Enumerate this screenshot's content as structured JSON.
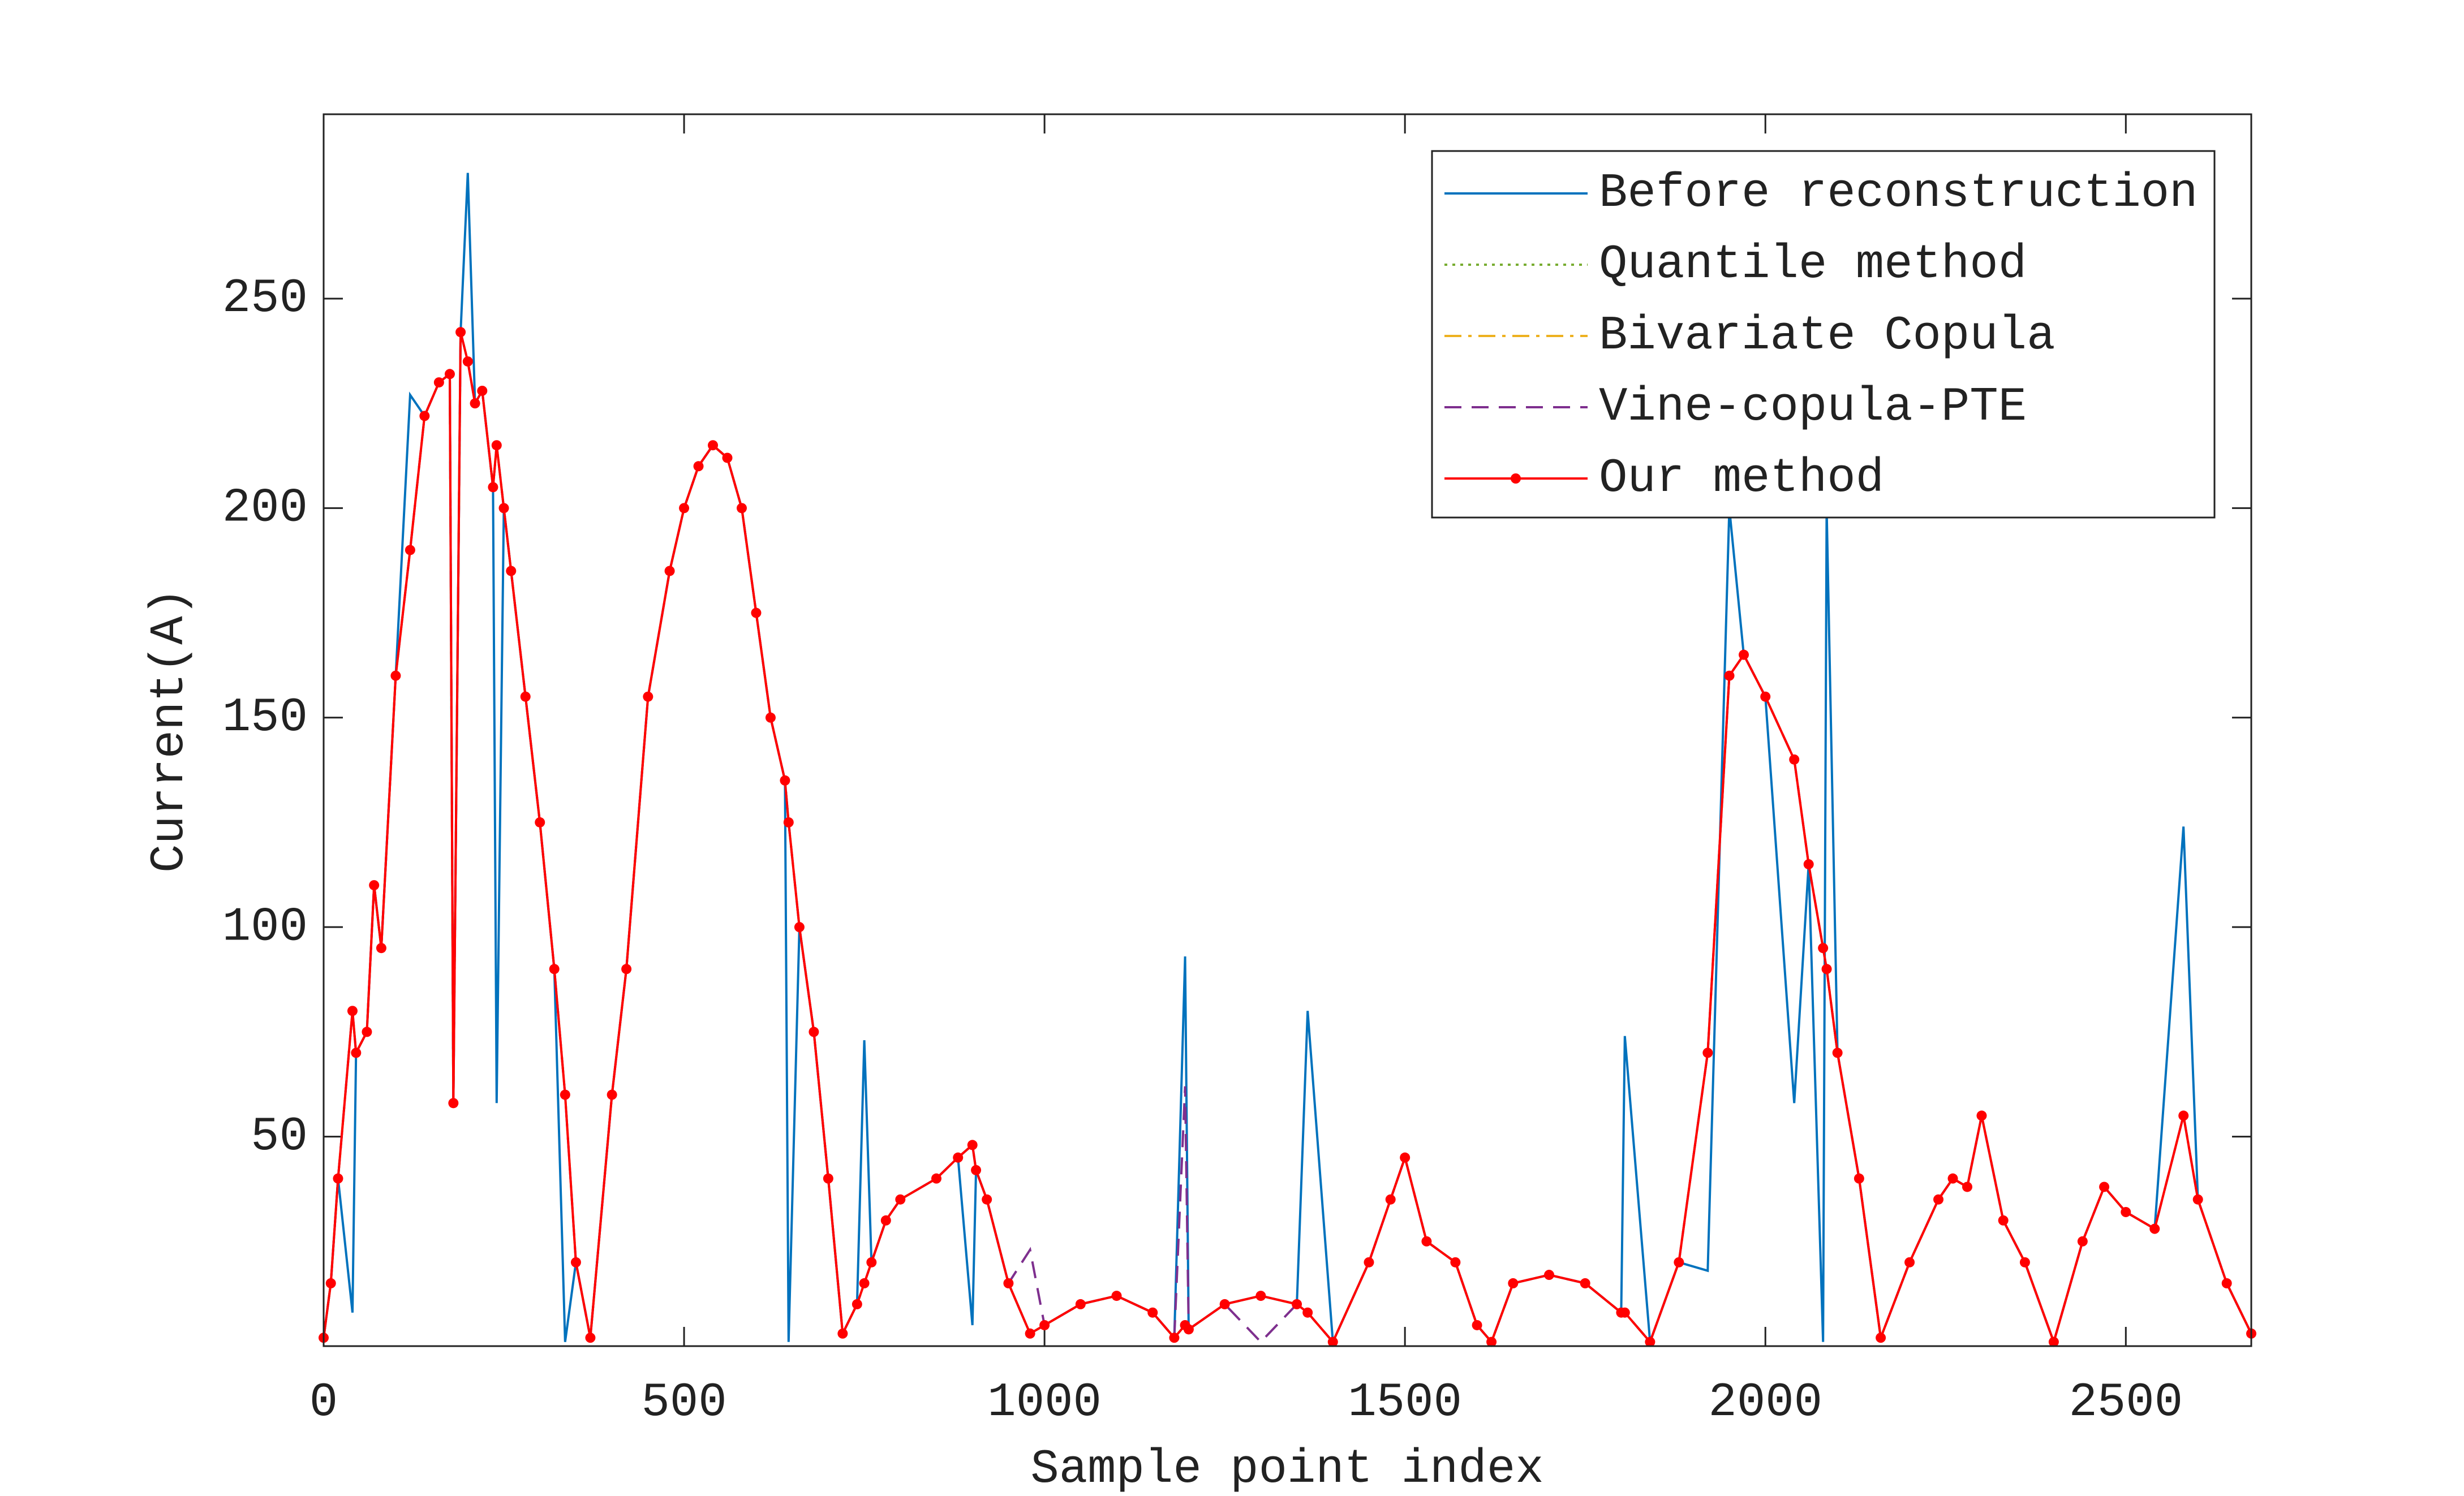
{
  "chart_data": {
    "type": "line",
    "xlabel": "Sample point index",
    "ylabel": "Current(A)",
    "x": [
      0,
      10,
      20,
      40,
      45,
      60,
      70,
      80,
      100,
      120,
      140,
      160,
      175,
      180,
      190,
      200,
      210,
      220,
      235,
      240,
      250,
      260,
      280,
      300,
      320,
      335,
      350,
      370,
      400,
      420,
      450,
      480,
      500,
      520,
      540,
      560,
      580,
      600,
      620,
      640,
      645,
      660,
      680,
      700,
      720,
      740,
      750,
      760,
      780,
      800,
      850,
      880,
      900,
      905,
      920,
      950,
      980,
      1000,
      1050,
      1100,
      1150,
      1180,
      1195,
      1200,
      1250,
      1300,
      1350,
      1365,
      1400,
      1450,
      1480,
      1500,
      1530,
      1570,
      1600,
      1620,
      1650,
      1700,
      1750,
      1800,
      1805,
      1840,
      1880,
      1920,
      1950,
      1970,
      2000,
      2040,
      2060,
      2080,
      2085,
      2100,
      2130,
      2160,
      2200,
      2240,
      2260,
      2280,
      2300,
      2330,
      2360,
      2400,
      2440,
      2470,
      2500,
      2540,
      2580,
      2600,
      2640,
      2674
    ],
    "series": [
      {
        "name": "Before reconstruction",
        "color": "#0072BD",
        "linestyle": "solid",
        "values": [
          2,
          15,
          40,
          8,
          70,
          75,
          110,
          95,
          160,
          227,
          222,
          230,
          232,
          58,
          242,
          280,
          225,
          228,
          205,
          58,
          200,
          185,
          155,
          125,
          90,
          1,
          20,
          2,
          60,
          90,
          155,
          185,
          200,
          210,
          215,
          212,
          200,
          175,
          150,
          135,
          1,
          100,
          75,
          40,
          3,
          10,
          73,
          20,
          30,
          35,
          40,
          45,
          5,
          42,
          35,
          15,
          3,
          5,
          10,
          12,
          8,
          2,
          93,
          4,
          10,
          12,
          10,
          80,
          1,
          20,
          35,
          45,
          25,
          20,
          5,
          1,
          15,
          17,
          15,
          8,
          74,
          1,
          20,
          18,
          200,
          165,
          155,
          58,
          115,
          1,
          200,
          70,
          40,
          2,
          20,
          35,
          40,
          38,
          55,
          30,
          20,
          1,
          25,
          38,
          32,
          28,
          124,
          35,
          15,
          3
        ]
      },
      {
        "name": "Quantile method",
        "color": "#77AC30",
        "linestyle": "dotted",
        "values": [
          2,
          15,
          40,
          80,
          70,
          75,
          110,
          95,
          160,
          190,
          222,
          230,
          232,
          58,
          242,
          235,
          225,
          228,
          205,
          215,
          200,
          185,
          155,
          125,
          90,
          60,
          20,
          2,
          60,
          90,
          155,
          185,
          200,
          210,
          215,
          212,
          200,
          175,
          150,
          135,
          125,
          100,
          75,
          40,
          3,
          10,
          15,
          20,
          30,
          35,
          40,
          45,
          48,
          42,
          35,
          15,
          3,
          5,
          10,
          12,
          8,
          2,
          5,
          4,
          10,
          12,
          10,
          8,
          1,
          20,
          35,
          45,
          25,
          20,
          5,
          1,
          15,
          17,
          15,
          8,
          8,
          1,
          20,
          70,
          160,
          165,
          155,
          140,
          115,
          95,
          90,
          70,
          40,
          2,
          20,
          35,
          40,
          38,
          55,
          30,
          20,
          1,
          25,
          38,
          32,
          28,
          55,
          35,
          15,
          3
        ]
      },
      {
        "name": "Bivariate Copula",
        "color": "#EDB120",
        "linestyle": "dashdot",
        "values": [
          2,
          15,
          40,
          80,
          70,
          75,
          110,
          95,
          160,
          190,
          222,
          230,
          232,
          58,
          242,
          235,
          225,
          228,
          205,
          215,
          200,
          185,
          155,
          125,
          90,
          60,
          20,
          2,
          60,
          90,
          155,
          185,
          200,
          210,
          215,
          212,
          200,
          175,
          150,
          135,
          125,
          100,
          75,
          40,
          3,
          10,
          15,
          20,
          30,
          35,
          40,
          45,
          48,
          42,
          35,
          15,
          3,
          5,
          10,
          12,
          8,
          2,
          5,
          4,
          10,
          12,
          10,
          8,
          1,
          20,
          35,
          45,
          25,
          20,
          5,
          1,
          15,
          17,
          15,
          8,
          8,
          1,
          20,
          70,
          160,
          165,
          155,
          140,
          115,
          95,
          90,
          70,
          40,
          2,
          20,
          35,
          40,
          38,
          55,
          30,
          20,
          1,
          25,
          38,
          32,
          28,
          55,
          35,
          15,
          3
        ]
      },
      {
        "name": "Vine-copula-PTE",
        "color": "#7E2F8E",
        "linestyle": "dashed",
        "values": [
          2,
          15,
          40,
          80,
          70,
          75,
          110,
          95,
          160,
          190,
          222,
          230,
          232,
          58,
          242,
          235,
          225,
          228,
          205,
          215,
          200,
          185,
          155,
          125,
          90,
          60,
          20,
          2,
          60,
          90,
          155,
          185,
          200,
          210,
          215,
          212,
          200,
          175,
          150,
          135,
          125,
          100,
          75,
          40,
          3,
          10,
          15,
          20,
          30,
          35,
          40,
          45,
          48,
          42,
          35,
          15,
          23,
          5,
          10,
          12,
          8,
          2,
          62,
          4,
          10,
          1,
          10,
          8,
          1,
          20,
          35,
          45,
          25,
          20,
          5,
          1,
          15,
          17,
          15,
          8,
          8,
          1,
          20,
          70,
          160,
          165,
          155,
          140,
          115,
          95,
          90,
          70,
          40,
          2,
          20,
          35,
          40,
          38,
          55,
          30,
          20,
          1,
          25,
          38,
          32,
          28,
          55,
          35,
          15,
          3
        ]
      },
      {
        "name": "Our method",
        "color": "#FF0000",
        "linestyle": "solid",
        "marker": "o",
        "values": [
          2,
          15,
          40,
          80,
          70,
          75,
          110,
          95,
          160,
          190,
          222,
          230,
          232,
          58,
          242,
          235,
          225,
          228,
          205,
          215,
          200,
          185,
          155,
          125,
          90,
          60,
          20,
          2,
          60,
          90,
          155,
          185,
          200,
          210,
          215,
          212,
          200,
          175,
          150,
          135,
          125,
          100,
          75,
          40,
          3,
          10,
          15,
          20,
          30,
          35,
          40,
          45,
          48,
          42,
          35,
          15,
          3,
          5,
          10,
          12,
          8,
          2,
          5,
          4,
          10,
          12,
          10,
          8,
          1,
          20,
          35,
          45,
          25,
          20,
          5,
          1,
          15,
          17,
          15,
          8,
          8,
          1,
          20,
          70,
          160,
          165,
          155,
          140,
          115,
          95,
          90,
          70,
          40,
          2,
          20,
          35,
          40,
          38,
          55,
          30,
          20,
          1,
          25,
          38,
          32,
          28,
          55,
          35,
          15,
          3
        ]
      }
    ],
    "xlim": [
      0,
      2674
    ],
    "ylim": [
      0,
      294
    ],
    "xticks": [
      0,
      500,
      1000,
      1500,
      2000,
      2500
    ],
    "yticks": [
      50,
      100,
      150,
      200,
      250
    ],
    "grid": false,
    "legend": "upper right"
  }
}
